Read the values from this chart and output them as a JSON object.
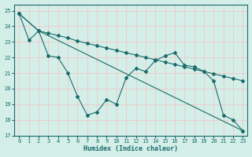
{
  "xlabel": "Humidex (Indice chaleur)",
  "xlim": [
    -0.5,
    23.5
  ],
  "ylim": [
    17,
    25.4
  ],
  "yticks": [
    17,
    18,
    19,
    20,
    21,
    22,
    23,
    24,
    25
  ],
  "xticks": [
    0,
    1,
    2,
    3,
    4,
    5,
    6,
    7,
    8,
    9,
    10,
    11,
    12,
    13,
    14,
    15,
    16,
    17,
    18,
    19,
    20,
    21,
    22,
    23
  ],
  "background_color": "#d4eee8",
  "grid_color": "#f0c8c8",
  "line_color": "#1a6b6b",
  "line1_x": [
    0,
    1,
    2,
    3,
    4,
    5,
    6,
    7,
    8,
    9,
    10,
    11,
    12,
    13,
    14,
    15,
    16,
    17,
    18,
    19,
    20,
    21,
    22,
    23
  ],
  "line1_y": [
    24.8,
    23.1,
    23.7,
    22.1,
    22.0,
    21.0,
    19.5,
    18.3,
    18.5,
    19.3,
    19.0,
    20.7,
    21.3,
    21.1,
    21.8,
    22.1,
    22.3,
    21.5,
    21.4,
    21.1,
    20.5,
    18.3,
    18.0,
    17.3
  ],
  "line2_x": [
    0,
    2,
    23
  ],
  "line2_y": [
    24.8,
    23.7,
    17.3
  ],
  "line3_x": [
    0,
    2,
    3,
    4,
    5,
    6,
    7,
    8,
    9,
    10,
    11,
    12,
    13,
    14,
    15,
    16,
    17,
    18,
    19,
    20,
    21,
    22,
    23
  ],
  "line3_y": [
    24.8,
    23.7,
    23.55,
    23.4,
    23.25,
    23.05,
    22.9,
    22.75,
    22.6,
    22.45,
    22.3,
    22.15,
    22.0,
    21.85,
    21.7,
    21.55,
    21.4,
    21.25,
    21.1,
    20.95,
    20.8,
    20.65,
    20.5
  ]
}
